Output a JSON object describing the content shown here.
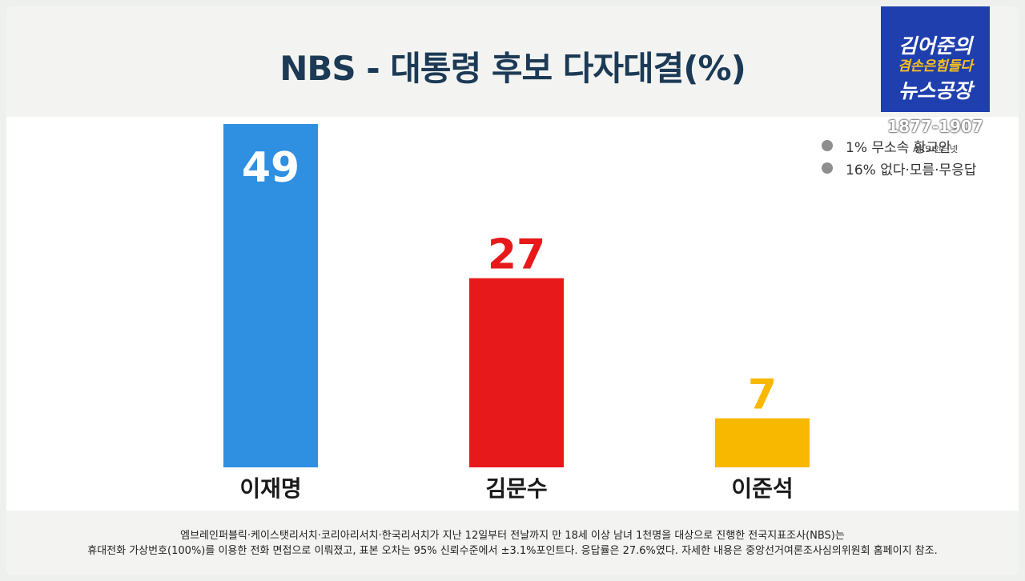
{
  "title": "NBS -  대통령 후보 다자대결(%)",
  "logo": {
    "line1": "김어준의",
    "line2": "겸손은힘들다",
    "line3": "뉴스공장",
    "phone": "1877-1907",
    "phone_sub": "ARS 인터넷"
  },
  "legend": [
    {
      "text": "1% 무소속 황교안"
    },
    {
      "text": "16% 없다·모름·무응답"
    }
  ],
  "chart_data": {
    "type": "bar",
    "title": "NBS -  대통령 후보 다자대결(%)",
    "categories": [
      "이재명",
      "김문수",
      "이준석"
    ],
    "values": [
      49,
      27,
      7
    ],
    "colors": [
      "#2f8fe0",
      "#e8191a",
      "#f9b800"
    ],
    "label_colors": [
      "#ffffff",
      "#e8191a",
      "#f9b800"
    ],
    "unit": "%",
    "notes": [
      "1% 무소속 황교안",
      "16% 없다·모름·무응답"
    ]
  },
  "footer": {
    "line1": "엠브레인퍼블릭·케이스탯리서치·코리아리서치·한국리서치가 지난 12일부터 전날까지 만 18세 이상 남녀 1천명을 대상으로 진행한 전국지표조사(NBS)는",
    "line2": "휴대전화 가상번호(100%)를 이용한 전화 면접으로 이뤄졌고, 표본 오차는 95% 신뢰수준에서 ±3.1%포인트다. 응답률은 27.6%였다. 자세한 내용은 중앙선거여론조사심의위원회 홈페이지 참조."
  }
}
